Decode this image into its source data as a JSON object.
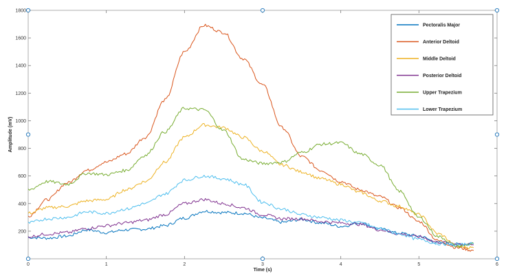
{
  "chart_data": {
    "type": "line",
    "title": "",
    "xlabel": "Time (s)",
    "ylabel": "Amplitude (mV)",
    "xlim": [
      0,
      6
    ],
    "ylim": [
      0,
      1800
    ],
    "xticks": [
      0,
      1,
      2,
      3,
      4,
      5,
      6
    ],
    "yticks": [
      200,
      400,
      600,
      800,
      1000,
      1200,
      1400,
      1600,
      1800
    ],
    "grid": false,
    "legend_position": "top-right",
    "series": [
      {
        "name": "Pectoralis Major",
        "color": "#0072BD",
        "x": [
          0,
          0.25,
          0.5,
          0.75,
          1.0,
          1.25,
          1.5,
          1.75,
          2.0,
          2.25,
          2.5,
          2.75,
          3.0,
          3.25,
          3.5,
          3.75,
          4.0,
          4.25,
          4.5,
          4.75,
          5.0,
          5.25,
          5.5,
          5.7
        ],
        "y": [
          155,
          150,
          165,
          210,
          190,
          210,
          215,
          240,
          295,
          345,
          335,
          330,
          295,
          265,
          285,
          260,
          235,
          260,
          215,
          185,
          165,
          115,
          105,
          110
        ]
      },
      {
        "name": "Anterior Deltoid",
        "color": "#D95319",
        "x": [
          0,
          0.25,
          0.5,
          0.75,
          1.0,
          1.25,
          1.5,
          1.75,
          2.0,
          2.25,
          2.5,
          2.75,
          3.0,
          3.25,
          3.5,
          3.75,
          4.0,
          4.25,
          4.5,
          4.75,
          5.0,
          5.25,
          5.5,
          5.7
        ],
        "y": [
          310,
          430,
          550,
          640,
          700,
          760,
          880,
          1150,
          1500,
          1690,
          1640,
          1450,
          1260,
          950,
          740,
          640,
          560,
          500,
          450,
          370,
          270,
          130,
          80,
          60
        ]
      },
      {
        "name": "Middle Deltoid",
        "color": "#EDB120",
        "x": [
          0,
          0.25,
          0.5,
          0.75,
          1.0,
          1.25,
          1.5,
          1.75,
          2.0,
          2.25,
          2.5,
          2.75,
          3.0,
          3.25,
          3.5,
          3.75,
          4.0,
          4.25,
          4.5,
          4.75,
          5.0,
          5.25,
          5.5,
          5.7
        ],
        "y": [
          330,
          370,
          380,
          420,
          430,
          500,
          560,
          700,
          880,
          970,
          950,
          880,
          780,
          680,
          630,
          580,
          540,
          480,
          420,
          380,
          320,
          180,
          90,
          80
        ]
      },
      {
        "name": "Posterior Deltoid",
        "color": "#7E2F8E",
        "x": [
          0,
          0.25,
          0.5,
          0.75,
          1.0,
          1.25,
          1.5,
          1.75,
          2.0,
          2.25,
          2.5,
          2.75,
          3.0,
          3.25,
          3.5,
          3.75,
          4.0,
          4.25,
          4.5,
          4.75,
          5.0,
          5.25,
          5.5,
          5.7
        ],
        "y": [
          160,
          180,
          190,
          220,
          240,
          260,
          280,
          320,
          400,
          430,
          400,
          370,
          320,
          290,
          290,
          270,
          260,
          250,
          210,
          180,
          160,
          120,
          110,
          100
        ]
      },
      {
        "name": "Upper Trapezium",
        "color": "#77AC30",
        "x": [
          0,
          0.25,
          0.5,
          0.75,
          1.0,
          1.25,
          1.5,
          1.75,
          2.0,
          2.25,
          2.5,
          2.75,
          3.0,
          3.25,
          3.5,
          3.75,
          4.0,
          4.25,
          4.5,
          4.75,
          5.0,
          5.25,
          5.5,
          5.7
        ],
        "y": [
          500,
          560,
          540,
          620,
          610,
          640,
          750,
          920,
          1090,
          1080,
          930,
          720,
          690,
          700,
          770,
          830,
          840,
          760,
          680,
          490,
          300,
          160,
          90,
          110
        ]
      },
      {
        "name": "Lower Trapezium",
        "color": "#4DBEEE",
        "x": [
          0,
          0.25,
          0.5,
          0.75,
          1.0,
          1.25,
          1.5,
          1.75,
          2.0,
          2.25,
          2.5,
          2.75,
          3.0,
          3.25,
          3.5,
          3.75,
          4.0,
          4.25,
          4.5,
          4.75,
          5.0,
          5.25,
          5.5,
          5.7
        ],
        "y": [
          260,
          290,
          300,
          340,
          330,
          360,
          400,
          470,
          570,
          600,
          580,
          540,
          410,
          360,
          320,
          300,
          280,
          260,
          220,
          180,
          140,
          110,
          100,
          110
        ]
      }
    ]
  }
}
